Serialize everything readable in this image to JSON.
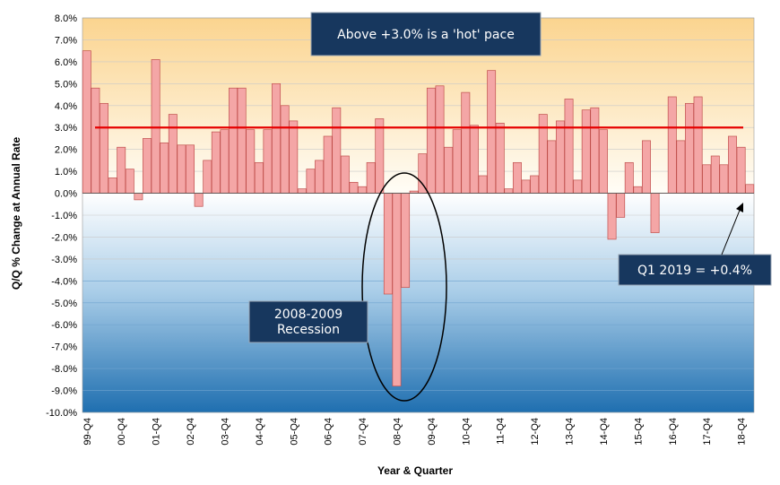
{
  "chart_data": {
    "type": "bar",
    "xlabel": "Year & Quarter",
    "ylabel": "Q/Q % Change at Annual Rate",
    "ylim": [
      -10,
      8
    ],
    "y_ticks": [
      "8.0%",
      "7.0%",
      "6.0%",
      "5.0%",
      "4.0%",
      "3.0%",
      "2.0%",
      "1.0%",
      "0.0%",
      "-1.0%",
      "-2.0%",
      "-3.0%",
      "-4.0%",
      "-5.0%",
      "-6.0%",
      "-7.0%",
      "-8.0%",
      "-9.0%",
      "-10.0%"
    ],
    "x_tick_labels": [
      "99-Q4",
      "00-Q4",
      "01-Q4",
      "02-Q4",
      "03-Q4",
      "04-Q4",
      "05-Q4",
      "06-Q4",
      "07-Q4",
      "08-Q4",
      "09-Q4",
      "10-Q4",
      "11-Q4",
      "12-Q4",
      "13-Q4",
      "14-Q4",
      "15-Q4",
      "16-Q4",
      "17-Q4",
      "18-Q4"
    ],
    "categories": [
      "99-Q4",
      "00-Q1",
      "00-Q2",
      "00-Q3",
      "00-Q4",
      "01-Q1",
      "01-Q2",
      "01-Q3",
      "01-Q4",
      "02-Q1",
      "02-Q2",
      "02-Q3",
      "02-Q4",
      "03-Q1",
      "03-Q2",
      "03-Q3",
      "03-Q4",
      "04-Q1",
      "04-Q2",
      "04-Q3",
      "04-Q4",
      "05-Q1",
      "05-Q2",
      "05-Q3",
      "05-Q4",
      "06-Q1",
      "06-Q2",
      "06-Q3",
      "06-Q4",
      "07-Q1",
      "07-Q2",
      "07-Q3",
      "07-Q4",
      "08-Q1",
      "08-Q2",
      "08-Q3",
      "08-Q4",
      "09-Q1",
      "09-Q2",
      "09-Q3",
      "09-Q4",
      "10-Q1",
      "10-Q2",
      "10-Q3",
      "10-Q4",
      "11-Q1",
      "11-Q2",
      "11-Q3",
      "11-Q4",
      "12-Q1",
      "12-Q2",
      "12-Q3",
      "12-Q4",
      "13-Q1",
      "13-Q2",
      "13-Q3",
      "13-Q4",
      "14-Q1",
      "14-Q2",
      "14-Q3",
      "14-Q4",
      "15-Q1",
      "15-Q2",
      "15-Q3",
      "15-Q4",
      "16-Q1",
      "16-Q2",
      "16-Q3",
      "16-Q4",
      "17-Q1",
      "17-Q2",
      "17-Q3",
      "17-Q4",
      "18-Q1",
      "18-Q2",
      "18-Q3",
      "18-Q4",
      "19-Q1"
    ],
    "values": [
      6.5,
      4.8,
      4.1,
      0.7,
      2.1,
      1.1,
      -0.3,
      2.5,
      6.1,
      2.3,
      3.6,
      2.2,
      2.2,
      -0.6,
      1.5,
      2.8,
      2.9,
      4.8,
      4.8,
      2.9,
      1.4,
      2.9,
      5.0,
      4.0,
      3.3,
      0.2,
      1.1,
      1.5,
      2.6,
      3.9,
      1.7,
      0.5,
      0.3,
      1.4,
      3.4,
      -4.6,
      -8.8,
      -4.3,
      0.1,
      1.8,
      4.8,
      4.9,
      2.1,
      2.9,
      4.6,
      3.1,
      0.8,
      5.6,
      3.2,
      0.2,
      1.4,
      0.6,
      0.8,
      3.6,
      2.4,
      3.3,
      4.3,
      0.6,
      3.8,
      3.9,
      2.9,
      -2.1,
      -1.1,
      1.4,
      0.3,
      2.4,
      -1.8,
      0.0,
      4.4,
      2.4,
      4.1,
      4.4,
      1.3,
      1.7,
      1.3,
      2.6,
      2.1,
      0.4
    ],
    "threshold": 3.0,
    "colors": {
      "bar_fill": "#f4a6a6",
      "bar_stroke": "#c0504d",
      "threshold_line": "#e60000",
      "callout_fill": "#17375e",
      "bg_top": "#fbd48f",
      "bg_bottom": "#1f6fb0"
    },
    "grid": true,
    "annotations": {
      "hot_pace": "Above +3.0% is a 'hot' pace",
      "recession_line1": "2008-2009",
      "recession_line2": "Recession",
      "latest": "Q1 2019 = +0.4%"
    }
  }
}
